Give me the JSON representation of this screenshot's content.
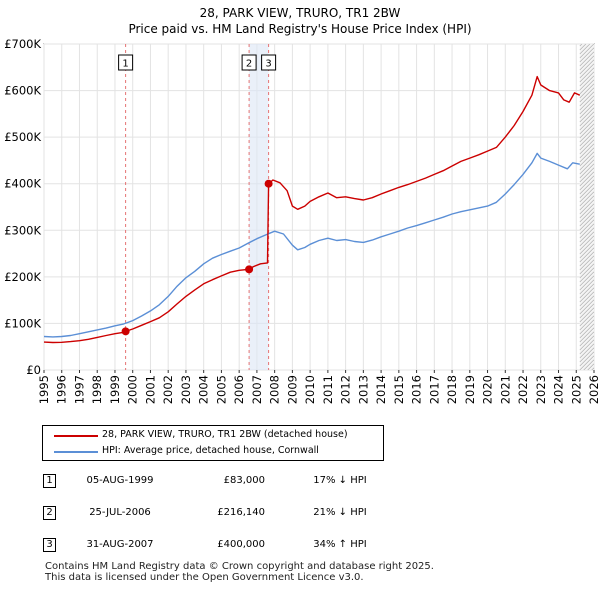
{
  "chart_data": {
    "type": "line",
    "title": "28, PARK VIEW, TRURO, TR1 2BW",
    "subtitle": "Price paid vs. HM Land Registry's House Price Index (HPI)",
    "xlabel": "",
    "ylabel": "",
    "xlim": [
      1995,
      2026
    ],
    "ylim": [
      0,
      700000
    ],
    "x_ticks": [
      "1995",
      "1996",
      "1997",
      "1998",
      "1999",
      "2000",
      "2001",
      "2002",
      "2003",
      "2004",
      "2005",
      "2006",
      "2007",
      "2008",
      "2009",
      "2010",
      "2011",
      "2012",
      "2013",
      "2014",
      "2015",
      "2016",
      "2017",
      "2018",
      "2019",
      "2020",
      "2021",
      "2022",
      "2023",
      "2024",
      "2025",
      "2026"
    ],
    "y_ticks": [
      {
        "value": 0,
        "label": "£0"
      },
      {
        "value": 100000,
        "label": "£100K"
      },
      {
        "value": 200000,
        "label": "£200K"
      },
      {
        "value": 300000,
        "label": "£300K"
      },
      {
        "value": 400000,
        "label": "£400K"
      },
      {
        "value": 500000,
        "label": "£500K"
      },
      {
        "value": 600000,
        "label": "£600K"
      },
      {
        "value": 700000,
        "label": "£700K"
      }
    ],
    "grid": true,
    "colors": {
      "property": "#cc0000",
      "hpi": "#5b8fd6",
      "sale_marker": "#cc0000",
      "band": "#dce6f5",
      "grid": "#e3e3e3",
      "vline": "#e57373",
      "future_hatch": "#b0b0b0"
    },
    "series": [
      {
        "name": "28, PARK VIEW, TRURO, TR1 2BW (detached house)",
        "color": "#cc0000",
        "points": [
          [
            1995.0,
            60000
          ],
          [
            1995.5,
            59000
          ],
          [
            1996.0,
            59500
          ],
          [
            1996.5,
            61000
          ],
          [
            1997.0,
            63000
          ],
          [
            1997.5,
            66000
          ],
          [
            1998.0,
            70000
          ],
          [
            1998.5,
            74000
          ],
          [
            1999.0,
            78000
          ],
          [
            1999.5,
            81000
          ],
          [
            1999.6,
            83000
          ],
          [
            2000.0,
            88000
          ],
          [
            2000.5,
            96000
          ],
          [
            2001.0,
            104000
          ],
          [
            2001.5,
            112000
          ],
          [
            2002.0,
            125000
          ],
          [
            2002.5,
            142000
          ],
          [
            2003.0,
            158000
          ],
          [
            2003.5,
            172000
          ],
          [
            2004.0,
            185000
          ],
          [
            2004.5,
            194000
          ],
          [
            2005.0,
            202000
          ],
          [
            2005.5,
            210000
          ],
          [
            2006.0,
            214000
          ],
          [
            2006.56,
            216140
          ],
          [
            2006.8,
            222000
          ],
          [
            2007.2,
            228000
          ],
          [
            2007.6,
            230000
          ],
          [
            2007.66,
            400000
          ],
          [
            2007.9,
            408000
          ],
          [
            2008.3,
            402000
          ],
          [
            2008.7,
            385000
          ],
          [
            2009.0,
            352000
          ],
          [
            2009.3,
            345000
          ],
          [
            2009.7,
            352000
          ],
          [
            2010.0,
            362000
          ],
          [
            2010.5,
            372000
          ],
          [
            2011.0,
            380000
          ],
          [
            2011.5,
            370000
          ],
          [
            2012.0,
            372000
          ],
          [
            2012.5,
            368000
          ],
          [
            2013.0,
            365000
          ],
          [
            2013.5,
            370000
          ],
          [
            2014.0,
            378000
          ],
          [
            2014.5,
            385000
          ],
          [
            2015.0,
            392000
          ],
          [
            2015.5,
            398000
          ],
          [
            2016.0,
            405000
          ],
          [
            2016.5,
            412000
          ],
          [
            2017.0,
            420000
          ],
          [
            2017.5,
            428000
          ],
          [
            2018.0,
            438000
          ],
          [
            2018.5,
            448000
          ],
          [
            2019.0,
            455000
          ],
          [
            2019.5,
            462000
          ],
          [
            2020.0,
            470000
          ],
          [
            2020.5,
            478000
          ],
          [
            2021.0,
            500000
          ],
          [
            2021.5,
            525000
          ],
          [
            2022.0,
            555000
          ],
          [
            2022.5,
            590000
          ],
          [
            2022.8,
            630000
          ],
          [
            2023.0,
            612000
          ],
          [
            2023.5,
            600000
          ],
          [
            2024.0,
            595000
          ],
          [
            2024.3,
            580000
          ],
          [
            2024.6,
            575000
          ],
          [
            2024.9,
            595000
          ],
          [
            2025.2,
            590000
          ]
        ]
      },
      {
        "name": "HPI: Average price, detached house, Cornwall",
        "color": "#5b8fd6",
        "points": [
          [
            1995.0,
            72000
          ],
          [
            1995.5,
            71000
          ],
          [
            1996.0,
            72000
          ],
          [
            1996.5,
            74000
          ],
          [
            1997.0,
            78000
          ],
          [
            1997.5,
            82000
          ],
          [
            1998.0,
            86000
          ],
          [
            1998.5,
            90000
          ],
          [
            1999.0,
            95000
          ],
          [
            1999.5,
            99000
          ],
          [
            2000.0,
            106000
          ],
          [
            2000.5,
            116000
          ],
          [
            2001.0,
            127000
          ],
          [
            2001.5,
            140000
          ],
          [
            2002.0,
            158000
          ],
          [
            2002.5,
            180000
          ],
          [
            2003.0,
            198000
          ],
          [
            2003.5,
            212000
          ],
          [
            2004.0,
            228000
          ],
          [
            2004.5,
            240000
          ],
          [
            2005.0,
            248000
          ],
          [
            2005.5,
            255000
          ],
          [
            2006.0,
            262000
          ],
          [
            2006.5,
            272000
          ],
          [
            2007.0,
            282000
          ],
          [
            2007.5,
            290000
          ],
          [
            2008.0,
            298000
          ],
          [
            2008.5,
            292000
          ],
          [
            2009.0,
            268000
          ],
          [
            2009.3,
            258000
          ],
          [
            2009.7,
            263000
          ],
          [
            2010.0,
            270000
          ],
          [
            2010.5,
            278000
          ],
          [
            2011.0,
            283000
          ],
          [
            2011.5,
            278000
          ],
          [
            2012.0,
            280000
          ],
          [
            2012.5,
            276000
          ],
          [
            2013.0,
            274000
          ],
          [
            2013.5,
            279000
          ],
          [
            2014.0,
            286000
          ],
          [
            2014.5,
            292000
          ],
          [
            2015.0,
            298000
          ],
          [
            2015.5,
            305000
          ],
          [
            2016.0,
            310000
          ],
          [
            2016.5,
            316000
          ],
          [
            2017.0,
            322000
          ],
          [
            2017.5,
            328000
          ],
          [
            2018.0,
            335000
          ],
          [
            2018.5,
            340000
          ],
          [
            2019.0,
            344000
          ],
          [
            2019.5,
            348000
          ],
          [
            2020.0,
            352000
          ],
          [
            2020.5,
            360000
          ],
          [
            2021.0,
            378000
          ],
          [
            2021.5,
            398000
          ],
          [
            2022.0,
            420000
          ],
          [
            2022.5,
            445000
          ],
          [
            2022.8,
            465000
          ],
          [
            2023.0,
            455000
          ],
          [
            2023.5,
            448000
          ],
          [
            2024.0,
            440000
          ],
          [
            2024.5,
            432000
          ],
          [
            2024.8,
            445000
          ],
          [
            2025.2,
            442000
          ]
        ]
      }
    ],
    "sales": [
      {
        "id": "1",
        "x": 1999.6,
        "value": 83000
      },
      {
        "id": "2",
        "x": 2006.56,
        "value": 216140
      },
      {
        "id": "3",
        "x": 2007.66,
        "value": 400000
      }
    ],
    "data_end_x": 2025.2
  },
  "legend": {
    "property_label": "28, PARK VIEW, TRURO, TR1 2BW (detached house)",
    "hpi_label": "HPI: Average price, detached house, Cornwall"
  },
  "sales_table": [
    {
      "id": "1",
      "date": "05-AUG-1999",
      "price": "£83,000",
      "hpi": "17% ↓ HPI"
    },
    {
      "id": "2",
      "date": "25-JUL-2006",
      "price": "£216,140",
      "hpi": "21% ↓ HPI"
    },
    {
      "id": "3",
      "date": "31-AUG-2007",
      "price": "£400,000",
      "hpi": "34% ↑ HPI"
    }
  ],
  "footer": {
    "line1": "Contains HM Land Registry data © Crown copyright and database right 2025.",
    "line2": "This data is licensed under the Open Government Licence v3.0."
  }
}
